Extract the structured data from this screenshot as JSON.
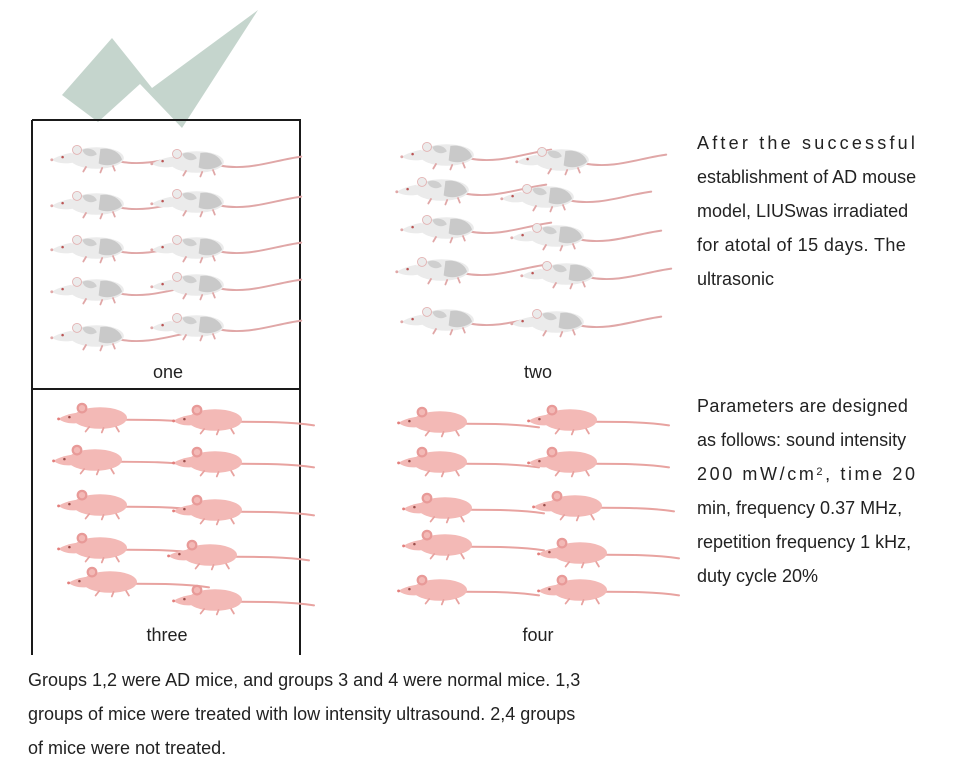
{
  "groups": {
    "one": "one",
    "two": "two",
    "three": "three",
    "four": "four"
  },
  "colors": {
    "ad_mouse_body": "#ebebeb",
    "ad_mouse_patch": "#c9c9c9",
    "normal_mouse_body": "#f3b9b6",
    "normal_mouse_ear": "#e89a98",
    "tail_white": "#e0a7a7",
    "tail_pink": "#e8a3a0",
    "check_mark": "#c5d5cd",
    "box_line": "#1a1a1a"
  },
  "right_text": {
    "para1": [
      "After the successful",
      "establishment of AD mouse",
      "model, LIUSwas irradiated",
      "for atotal of 15 days. The",
      "ultrasonic"
    ],
    "para2": {
      "line1": "Parameters are designed",
      "line2": "as follows: sound intensity",
      "line3_a": "200 mW/cm",
      "line3_sup": "2",
      "line3_b": ", time 20",
      "line4": "min, frequency 0.37 MHz,",
      "line5": "repetition frequency 1 kHz,",
      "line6": "duty cycle 20%"
    }
  },
  "bottom_text": [
    "Groups 1,2 were AD mice, and groups 3 and 4 were normal mice. 1,3",
    "groups of mice were treated with low intensity ultrasound. 2,4 groups",
    "of mice were not treated."
  ]
}
